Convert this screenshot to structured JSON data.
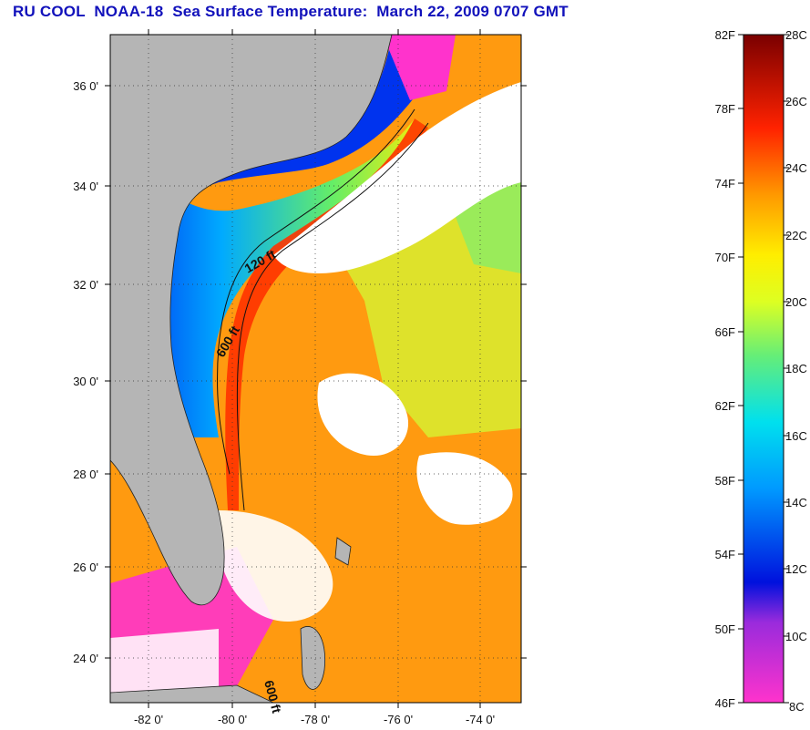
{
  "title": "RU COOL  NOAA-18  Sea Surface Temperature:  March 22, 2009 0707 GMT",
  "map": {
    "lat_ticks": [
      "36 0'",
      "34 0'",
      "32 0'",
      "30 0'",
      "28 0'",
      "26 0'",
      "24 0'"
    ],
    "lon_ticks": [
      "-82 0'",
      "-80 0'",
      "-78 0'",
      "-76 0'",
      "-74 0'"
    ],
    "contour_labels": [
      "120 ft",
      "600 ft",
      "600 ft"
    ]
  },
  "colorbar": {
    "fahrenheit_labels": [
      "82F",
      "78F",
      "74F",
      "70F",
      "66F",
      "62F",
      "58F",
      "54F",
      "50F",
      "46F"
    ],
    "celsius_labels": [
      "28C",
      "26C",
      "24C",
      "22C",
      "20C",
      "18C",
      "16C",
      "14C",
      "12C",
      "10C",
      "8C"
    ]
  },
  "colors": {
    "title": "#1111bb",
    "land": "#b5b5b5",
    "cloud": "#ffffff"
  }
}
